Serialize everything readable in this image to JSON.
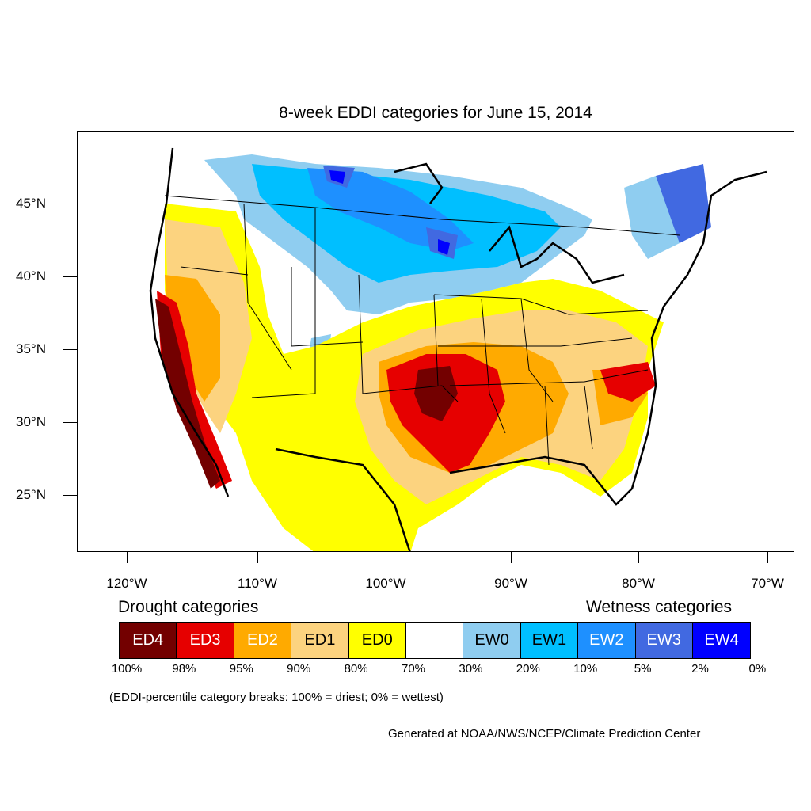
{
  "title": "8-week EDDI categories for June 15, 2014",
  "map": {
    "lat_labels": [
      "45°N",
      "40°N",
      "35°N",
      "30°N",
      "25°N"
    ],
    "lon_labels": [
      "120°W",
      "110°W",
      "100°W",
      "90°W",
      "80°W",
      "70°W"
    ],
    "regions": [
      {
        "name": "Pacific Coast",
        "category": "ED4"
      },
      {
        "name": "Central Plains (Oklahoma)",
        "category": "ED4"
      },
      {
        "name": "Southern Plains",
        "category": "ED3"
      },
      {
        "name": "Carolinas",
        "category": "ED3"
      },
      {
        "name": "Northern Plains / Upper Midwest",
        "category": "EW2"
      },
      {
        "name": "Northeast",
        "category": "EW3"
      }
    ]
  },
  "legend": {
    "drought_title": "Drought categories",
    "wetness_title": "Wetness categories",
    "categories": [
      {
        "label": "ED4",
        "color": "#730000",
        "text_color": "#ffffff"
      },
      {
        "label": "ED3",
        "color": "#e60000",
        "text_color": "#ffffff"
      },
      {
        "label": "ED2",
        "color": "#ffaa00",
        "text_color": "#ffffff"
      },
      {
        "label": "ED1",
        "color": "#fcd37f",
        "text_color": "#000000"
      },
      {
        "label": "ED0",
        "color": "#ffff00",
        "text_color": "#000000"
      },
      {
        "label": "",
        "color": "#ffffff",
        "text_color": "#000000"
      },
      {
        "label": "EW0",
        "color": "#8fcdf0",
        "text_color": "#000000"
      },
      {
        "label": "EW1",
        "color": "#00bfff",
        "text_color": "#000000"
      },
      {
        "label": "EW2",
        "color": "#1e90ff",
        "text_color": "#ffffff"
      },
      {
        "label": "EW3",
        "color": "#4169e1",
        "text_color": "#ffffff"
      },
      {
        "label": "EW4",
        "color": "#0000ff",
        "text_color": "#ffffff"
      }
    ],
    "percentiles": [
      "100%",
      "98%",
      "95%",
      "90%",
      "80%",
      "70%",
      "30%",
      "20%",
      "10%",
      "5%",
      "2%",
      "0%"
    ]
  },
  "note": "(EDDI-percentile category breaks: 100% = driest; 0% = wettest)",
  "credit": "Generated at NOAA/NWS/NCEP/Climate Prediction Center"
}
